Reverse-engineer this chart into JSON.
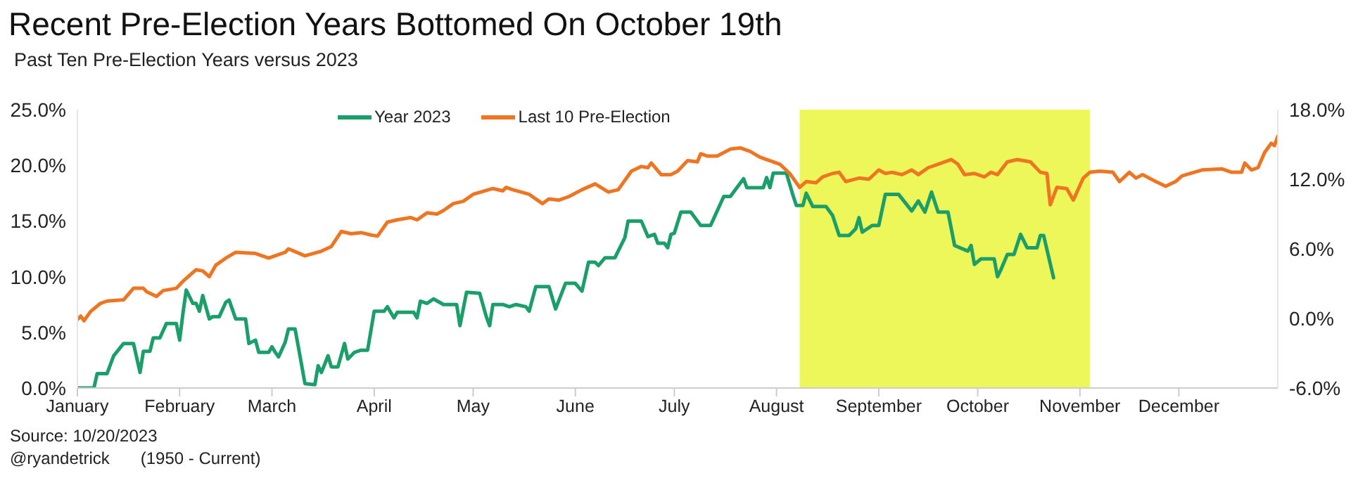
{
  "chart_data": {
    "type": "line",
    "title": "Recent Pre-Election Years Bottomed On October 19th",
    "subtitle": "Past Ten Pre-Election Years versus 2023",
    "annotations": [
      "Source: 10/20/2023",
      "@ryandetrick",
      "(1950 - Current)"
    ],
    "xlim": [
      "--01-01",
      "--12-31"
    ],
    "xticks": [
      {
        "value": "--01-01",
        "label": "January"
      },
      {
        "value": "--02-01",
        "label": "February"
      },
      {
        "value": "--03-01",
        "label": "March"
      },
      {
        "value": "--04-01",
        "label": "April"
      },
      {
        "value": "--05-01",
        "label": "May"
      },
      {
        "value": "--06-01",
        "label": "June"
      },
      {
        "value": "--07-01",
        "label": "July"
      },
      {
        "value": "--08-01",
        "label": "August"
      },
      {
        "value": "--09-01",
        "label": "September"
      },
      {
        "value": "--10-01",
        "label": "October"
      },
      {
        "value": "--11-01",
        "label": "November"
      },
      {
        "value": "--12-01",
        "label": "December"
      }
    ],
    "ylim": [
      0,
      25
    ],
    "yticks": [
      {
        "value": 0,
        "label": "0.0%"
      },
      {
        "value": 5,
        "label": "5.0%"
      },
      {
        "value": 10,
        "label": "10.0%"
      },
      {
        "value": 15,
        "label": "15.0%"
      },
      {
        "value": 20,
        "label": "20.0%"
      },
      {
        "value": 25,
        "label": "25.0%"
      }
    ],
    "y2lim": [
      -6,
      18
    ],
    "y2ticks": [
      {
        "value": -6,
        "label": "-6.0%"
      },
      {
        "value": 0,
        "label": "0.0%"
      },
      {
        "value": 6,
        "label": "6.0%"
      },
      {
        "value": 12,
        "label": "12.0%"
      },
      {
        "value": 18,
        "label": "18.0%"
      }
    ],
    "grid": false,
    "legend": "top",
    "marker": "none",
    "line_style": "solid",
    "bands": [
      {
        "axis": "x",
        "from": "--08-08",
        "to": "--11-04",
        "label": null,
        "color": "#eef75a"
      }
    ],
    "series": [
      {
        "name": "Year 2023",
        "color": "#1a9e6a",
        "x": [
          "--01-01",
          "--01-06",
          "--01-07",
          "--01-10",
          "--01-12",
          "--01-15",
          "--01-18",
          "--01-20",
          "--01-21",
          "--01-23",
          "--01-24",
          "--01-26",
          "--01-28",
          "--01-31",
          "--02-01",
          "--02-02",
          "--02-03",
          "--02-05",
          "--02-06",
          "--02-07",
          "--02-08",
          "--02-10",
          "--02-11",
          "--02-13",
          "--02-15",
          "--02-16",
          "--02-18",
          "--02-21",
          "--02-22",
          "--02-24",
          "--02-25",
          "--02-28",
          "--03-01",
          "--03-02",
          "--03-03",
          "--03-05",
          "--03-06",
          "--03-08",
          "--03-09",
          "--03-11",
          "--03-14",
          "--03-15",
          "--03-16",
          "--03-18",
          "--03-19",
          "--03-21",
          "--03-23",
          "--03-24",
          "--03-26",
          "--03-28",
          "--03-30",
          "--04-01",
          "--04-04",
          "--04-05",
          "--04-07",
          "--04-08",
          "--04-13",
          "--04-14",
          "--04-15",
          "--04-17",
          "--04-19",
          "--04-22",
          "--04-26",
          "--04-27",
          "--04-29",
          "--05-03",
          "--05-05",
          "--05-06",
          "--05-07",
          "--05-10",
          "--05-12",
          "--05-14",
          "--05-17",
          "--05-18",
          "--05-20",
          "--05-24",
          "--05-26",
          "--05-29",
          "--06-01",
          "--06-03",
          "--06-05",
          "--06-07",
          "--06-08",
          "--06-10",
          "--06-13",
          "--06-16",
          "--06-17",
          "--06-21",
          "--06-23",
          "--06-25",
          "--06-26",
          "--06-28",
          "--06-29",
          "--06-30",
          "--07-01",
          "--07-03",
          "--07-06",
          "--07-09",
          "--07-12",
          "--07-16",
          "--07-18",
          "--07-22",
          "--07-23",
          "--07-28",
          "--07-29",
          "--07-30",
          "--07-31",
          "--08-04",
          "--08-06",
          "--08-07",
          "--08-09",
          "--08-10",
          "--08-12",
          "--08-16",
          "--08-18",
          "--08-20",
          "--08-23",
          "--08-25",
          "--08-26",
          "--08-27",
          "--08-30",
          "--09-01",
          "--09-03",
          "--09-07",
          "--09-11",
          "--09-13",
          "--09-15",
          "--09-17",
          "--09-19",
          "--09-22",
          "--09-24",
          "--09-28",
          "--09-29",
          "--09-30",
          "--10-02",
          "--10-06",
          "--10-07",
          "--10-08",
          "--10-10",
          "--10-12",
          "--10-14",
          "--10-16",
          "--10-19",
          "--10-20",
          "--10-21",
          "--10-24"
        ],
        "values": [
          0,
          0,
          1.3,
          1.3,
          2.9,
          4.0,
          4.0,
          1.4,
          3.3,
          3.3,
          4.5,
          4.5,
          5.8,
          5.8,
          4.3,
          6.7,
          8.8,
          7.6,
          7.6,
          6.9,
          8.3,
          6.2,
          6.4,
          6.4,
          7.7,
          7.9,
          6.2,
          6.2,
          4.0,
          4.3,
          3.2,
          3.2,
          3.7,
          3.2,
          2.8,
          4.1,
          5.3,
          5.3,
          3.7,
          0.4,
          0.3,
          2.0,
          1.4,
          2.9,
          1.9,
          1.9,
          4.0,
          2.6,
          3.2,
          3.4,
          3.4,
          6.9,
          6.9,
          7.3,
          6.3,
          6.8,
          6.8,
          6.3,
          7.8,
          7.6,
          8.0,
          7.5,
          7.5,
          5.6,
          8.6,
          8.5,
          6.4,
          5.6,
          7.5,
          7.5,
          7.3,
          7.5,
          7.3,
          6.9,
          9.1,
          9.1,
          7.1,
          9.4,
          9.4,
          8.7,
          11.3,
          11.3,
          11.0,
          11.7,
          11.7,
          13.5,
          15.0,
          15.0,
          13.6,
          13.8,
          13.0,
          13.0,
          12.6,
          13.8,
          13.9,
          15.8,
          15.8,
          14.6,
          14.6,
          17.2,
          17.2,
          18.8,
          18.0,
          18.0,
          18.9,
          18.0,
          19.3,
          19.3,
          17.3,
          16.4,
          16.4,
          17.5,
          16.3,
          16.3,
          15.5,
          13.7,
          13.7,
          14.3,
          15.3,
          14.0,
          14.6,
          14.6,
          17.4,
          17.4,
          15.9,
          16.8,
          15.8,
          17.6,
          15.8,
          15.8,
          12.8,
          12.3,
          12.8,
          11.1,
          11.6,
          11.6,
          10.0,
          10.6,
          12.0,
          12.0,
          13.8,
          12.6,
          12.6,
          13.7,
          13.7,
          9.9
        ]
      },
      {
        "name": "Last 10 Pre-Election",
        "color": "#ee7623",
        "axis": "y2",
        "x": [
          "--01-01",
          "--01-02",
          "--01-03",
          "--01-05",
          "--01-08",
          "--01-10",
          "--01-15",
          "--01-18",
          "--01-21",
          "--01-22",
          "--01-25",
          "--01-27",
          "--01-31",
          "--02-02",
          "--02-06",
          "--02-08",
          "--02-10",
          "--02-12",
          "--02-15",
          "--02-18",
          "--02-24",
          "--02-28",
          "--03-05",
          "--03-06",
          "--03-11",
          "--03-16",
          "--03-19",
          "--03-22",
          "--03-25",
          "--03-28",
          "--03-31",
          "--04-02",
          "--04-05",
          "--04-08",
          "--04-12",
          "--04-14",
          "--04-17",
          "--04-20",
          "--04-22",
          "--04-25",
          "--04-28",
          "--05-01",
          "--05-07",
          "--05-10",
          "--05-11",
          "--05-13",
          "--05-18",
          "--05-22",
          "--05-24",
          "--05-27",
          "--05-30",
          "--06-03",
          "--06-07",
          "--06-11",
          "--06-14",
          "--06-18",
          "--06-21",
          "--06-23",
          "--06-24",
          "--06-27",
          "--06-30",
          "--07-02",
          "--07-05",
          "--07-08",
          "--07-09",
          "--07-11",
          "--07-14",
          "--07-18",
          "--07-21",
          "--07-24",
          "--07-27",
          "--07-30",
          "--08-02",
          "--08-05",
          "--08-08",
          "--08-10",
          "--08-13",
          "--08-15",
          "--08-18",
          "--08-20",
          "--08-22",
          "--08-26",
          "--08-29",
          "--09-01",
          "--09-03",
          "--09-05",
          "--09-08",
          "--09-11",
          "--09-13",
          "--09-16",
          "--09-19",
          "--09-23",
          "--09-25",
          "--09-27",
          "--09-30",
          "--10-03",
          "--10-05",
          "--10-07",
          "--10-10",
          "--10-13",
          "--10-17",
          "--10-20",
          "--10-22",
          "--10-23",
          "--10-25",
          "--10-28",
          "--10-30",
          "--11-02",
          "--11-04",
          "--11-07",
          "--11-11",
          "--11-13",
          "--11-16",
          "--11-18",
          "--11-20",
          "--11-24",
          "--11-27",
          "--11-30",
          "--12-02",
          "--12-08",
          "--12-14",
          "--12-17",
          "--12-20",
          "--12-21",
          "--12-23",
          "--12-25",
          "--12-27",
          "--12-29",
          "--12-30",
          "--12-31"
        ],
        "values": [
          -0.1,
          0.2,
          -0.2,
          0.6,
          1.3,
          1.5,
          1.6,
          2.6,
          2.6,
          2.3,
          1.9,
          2.4,
          2.6,
          3.2,
          4.2,
          4.1,
          3.6,
          4.6,
          5.2,
          5.7,
          5.6,
          5.2,
          5.7,
          6.0,
          5.4,
          5.8,
          6.2,
          7.5,
          7.3,
          7.4,
          7.2,
          7.1,
          8.3,
          8.5,
          8.7,
          8.5,
          9.1,
          9.0,
          9.3,
          9.9,
          10.1,
          10.7,
          11.2,
          11.0,
          11.3,
          11.1,
          10.7,
          9.9,
          10.3,
          10.2,
          10.5,
          11.1,
          11.6,
          10.9,
          11.1,
          12.7,
          13.1,
          13.0,
          13.4,
          12.4,
          12.4,
          12.7,
          13.6,
          13.5,
          14.2,
          14.0,
          14.0,
          14.6,
          14.7,
          14.4,
          13.9,
          13.6,
          13.3,
          12.5,
          11.3,
          11.8,
          11.7,
          12.2,
          12.5,
          12.6,
          11.8,
          12.1,
          12.0,
          12.8,
          12.5,
          12.6,
          12.4,
          12.8,
          12.4,
          13.0,
          13.3,
          13.7,
          13.3,
          12.4,
          12.5,
          12.2,
          12.6,
          12.4,
          13.5,
          13.7,
          13.5,
          12.6,
          12.5,
          9.8,
          11.3,
          11.2,
          10.2,
          12.1,
          12.6,
          12.7,
          12.6,
          11.8,
          12.6,
          12.1,
          12.4,
          11.8,
          11.4,
          11.8,
          12.3,
          12.8,
          12.9,
          12.6,
          12.6,
          13.4,
          12.8,
          13.0,
          14.3,
          15.1,
          14.9,
          15.7
        ]
      }
    ]
  }
}
